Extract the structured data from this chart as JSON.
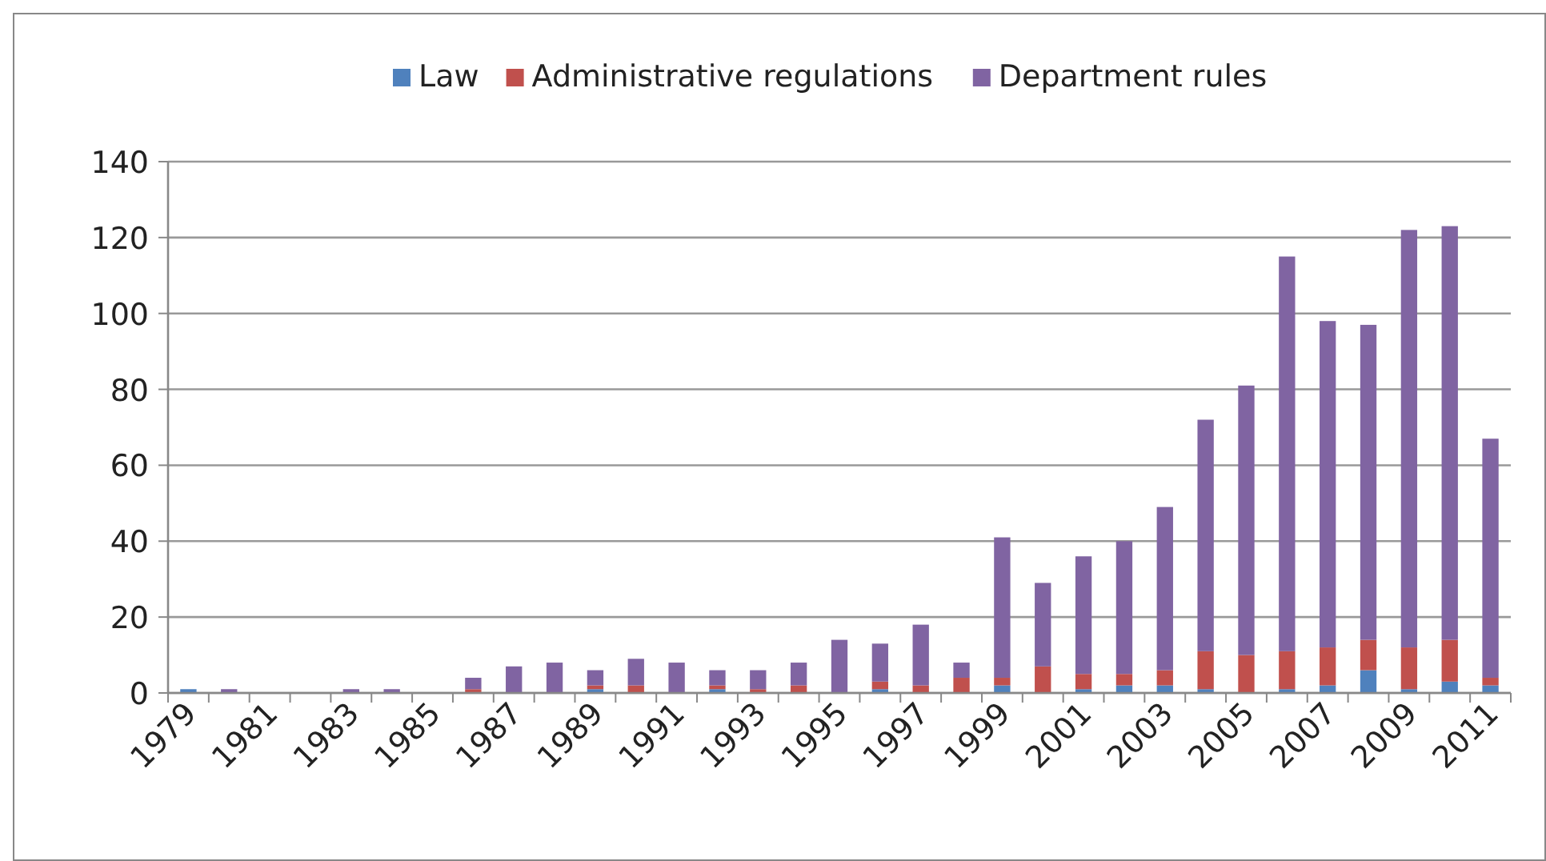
{
  "chart_data": {
    "type": "bar",
    "stacked": true,
    "categories": [
      "1979",
      null,
      "1981",
      null,
      "1983",
      null,
      "1985",
      null,
      "1987",
      null,
      "1989",
      null,
      "1991",
      null,
      "1993",
      null,
      "1995",
      null,
      "1997",
      null,
      "1999",
      null,
      "2001",
      null,
      "2003",
      null,
      "2005",
      null,
      "2007",
      null,
      "2009",
      null,
      "2011"
    ],
    "series": [
      {
        "name": "Law",
        "color": "#4f81bd",
        "values": [
          1,
          0,
          0,
          0,
          0,
          0,
          0,
          0,
          0,
          0,
          1,
          0,
          0,
          1,
          0,
          0,
          0,
          1,
          0,
          0,
          2,
          0,
          1,
          2,
          2,
          1,
          0,
          1,
          2,
          6,
          1,
          3,
          2
        ]
      },
      {
        "name": "Administrative regulations",
        "color": "#c0504d",
        "values": [
          0,
          0,
          0,
          0,
          0,
          0,
          0,
          1,
          0,
          0,
          1,
          2,
          0,
          1,
          1,
          2,
          0,
          2,
          2,
          4,
          2,
          7,
          4,
          3,
          4,
          10,
          10,
          10,
          10,
          8,
          11,
          11,
          2
        ]
      },
      {
        "name": "Department rules",
        "color": "#8064a2",
        "values": [
          0,
          1,
          0,
          0,
          1,
          1,
          0,
          3,
          7,
          8,
          4,
          7,
          8,
          4,
          5,
          6,
          14,
          10,
          16,
          4,
          37,
          22,
          31,
          35,
          43,
          61,
          71,
          104,
          86,
          83,
          110,
          109,
          63
        ]
      }
    ],
    "ylim": [
      0,
      140
    ],
    "yticks": [
      0,
      20,
      40,
      60,
      80,
      100,
      120,
      140
    ],
    "grid": "y",
    "legend": "top"
  }
}
